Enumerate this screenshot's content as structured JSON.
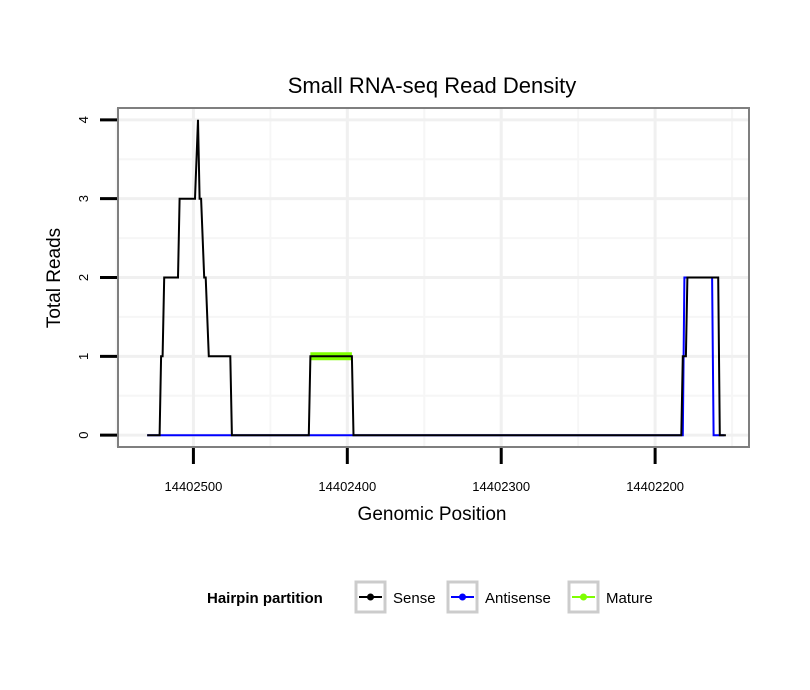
{
  "chart_data": {
    "type": "line",
    "title": "Small RNA-seq Read Density",
    "xlabel": "Genomic Position",
    "ylabel": "Total Reads",
    "xlim": [
      14402549,
      14402139
    ],
    "ylim": [
      -0.15,
      4.15
    ],
    "x_reversed": true,
    "x_ticks": [
      14402500,
      14402400,
      14402300,
      14402200
    ],
    "x_tick_labels": [
      "14402500",
      "14402400",
      "14402300",
      "14402200"
    ],
    "y_ticks": [
      0,
      1,
      2,
      3,
      4
    ],
    "y_tick_labels": [
      "0",
      "1",
      "2",
      "3",
      "4"
    ],
    "grid": true,
    "legend": {
      "title": "Hairpin partition",
      "position": "bottom",
      "entries": [
        {
          "name": "Sense",
          "color": "#000000"
        },
        {
          "name": "Antisense",
          "color": "#0000ff"
        },
        {
          "name": "Mature",
          "color": "#7fff00"
        }
      ]
    },
    "series": [
      {
        "name": "Mature",
        "color": "#7fff00",
        "points": [
          [
            14402424,
            1
          ],
          [
            14402397,
            1
          ]
        ]
      },
      {
        "name": "Antisense",
        "color": "#0000ff",
        "points": [
          [
            14402530,
            0
          ],
          [
            14402182,
            0
          ],
          [
            14402181,
            2
          ],
          [
            14402163,
            2
          ],
          [
            14402162,
            0
          ],
          [
            14402155,
            0
          ]
        ]
      },
      {
        "name": "Sense",
        "color": "#000000",
        "points": [
          [
            14402530,
            0
          ],
          [
            14402522,
            0
          ],
          [
            14402521,
            1
          ],
          [
            14402520,
            1
          ],
          [
            14402519,
            2
          ],
          [
            14402510,
            2
          ],
          [
            14402509,
            3
          ],
          [
            14402499,
            3
          ],
          [
            14402497,
            4
          ],
          [
            14402496,
            3
          ],
          [
            14402495,
            3
          ],
          [
            14402493,
            2
          ],
          [
            14402492,
            2
          ],
          [
            14402490,
            1
          ],
          [
            14402476,
            1
          ],
          [
            14402475,
            0
          ],
          [
            14402425,
            0
          ],
          [
            14402424,
            1
          ],
          [
            14402397,
            1
          ],
          [
            14402396,
            0
          ],
          [
            14402183,
            0
          ],
          [
            14402182,
            1
          ],
          [
            14402180,
            1
          ],
          [
            14402179,
            2
          ],
          [
            14402159,
            2
          ],
          [
            14402158,
            0
          ],
          [
            14402154,
            0
          ]
        ]
      }
    ]
  }
}
